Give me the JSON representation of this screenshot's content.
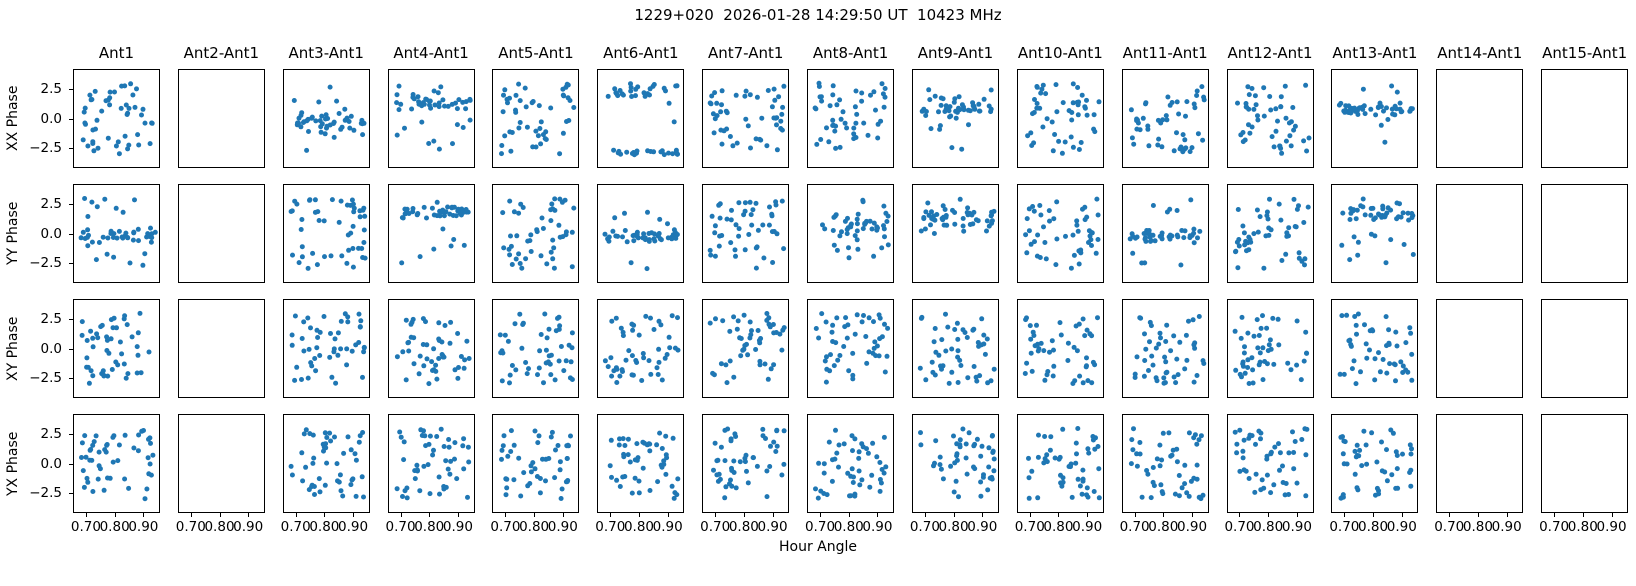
{
  "chart_data": {
    "type": "scatter",
    "title": "1229+020  2026-01-28 14:29:50 UT  10423 MHz",
    "xlabel": "Hour Angle",
    "row_labels": [
      "XX Phase",
      "YY Phase",
      "XY Phase",
      "YX Phase"
    ],
    "col_labels": [
      "Ant1",
      "Ant2-Ant1",
      "Ant3-Ant1",
      "Ant4-Ant1",
      "Ant5-Ant1",
      "Ant6-Ant1",
      "Ant7-Ant1",
      "Ant8-Ant1",
      "Ant9-Ant1",
      "Ant10-Ant1",
      "Ant11-Ant1",
      "Ant12-Ant1",
      "Ant13-Ant1",
      "Ant14-Ant1",
      "Ant15-Ant1"
    ],
    "empty_cols": [
      "Ant2-Ant1",
      "Ant14-Ant1",
      "Ant15-Ant1"
    ],
    "x_ticks": {
      "values": [
        0.7,
        0.8,
        0.9
      ],
      "labels": [
        "0.70",
        "0.80",
        "0.90"
      ]
    },
    "y_ticks": {
      "values": [
        2.5,
        0.0,
        -2.5
      ],
      "labels": [
        "2.5",
        "0.0",
        "−2.5"
      ]
    },
    "xlim": [
      0.655,
      0.958
    ],
    "ylim": [
      -4.2,
      4.2
    ],
    "x_data_range": [
      0.68,
      0.945
    ],
    "y_data_range": [
      -3.14,
      3.14
    ],
    "n_points": 50,
    "marker_color": "#1f77b4",
    "panels": [
      {
        "row": "XX Phase",
        "col": "Ant1",
        "pattern": "uniform",
        "seed": 101
      },
      {
        "row": "XX Phase",
        "col": "Ant3-Ant1",
        "pattern": "band",
        "center": -0.4,
        "spread": 1.7,
        "outlier": 0.3,
        "seed": 103
      },
      {
        "row": "XX Phase",
        "col": "Ant4-Ant1",
        "pattern": "band",
        "center": 1.4,
        "spread": 0.9,
        "outlier": 0.2,
        "seed": 104
      },
      {
        "row": "XX Phase",
        "col": "Ant5-Ant1",
        "pattern": "uniform",
        "seed": 105
      },
      {
        "row": "XX Phase",
        "col": "Ant6-Ant1",
        "pattern": "wrap",
        "seed": 106
      },
      {
        "row": "XX Phase",
        "col": "Ant7-Ant1",
        "pattern": "uniform",
        "seed": 107
      },
      {
        "row": "XX Phase",
        "col": "Ant8-Ant1",
        "pattern": "uniform",
        "seed": 108
      },
      {
        "row": "XX Phase",
        "col": "Ant9-Ant1",
        "pattern": "band",
        "center": 1.0,
        "spread": 1.6,
        "outlier": 0.25,
        "seed": 109
      },
      {
        "row": "XX Phase",
        "col": "Ant10-Ant1",
        "pattern": "uniform",
        "seed": 110
      },
      {
        "row": "XX Phase",
        "col": "Ant11-Ant1",
        "pattern": "uniform",
        "seed": 111
      },
      {
        "row": "XX Phase",
        "col": "Ant12-Ant1",
        "pattern": "uniform",
        "seed": 112
      },
      {
        "row": "XX Phase",
        "col": "Ant13-Ant1",
        "pattern": "band",
        "center": 0.8,
        "spread": 0.8,
        "outlier": 0.25,
        "seed": 113
      },
      {
        "row": "YY Phase",
        "col": "Ant1",
        "pattern": "band",
        "center": -0.2,
        "spread": 1.1,
        "outlier": 0.35,
        "seed": 201
      },
      {
        "row": "YY Phase",
        "col": "Ant3-Ant1",
        "pattern": "uniform",
        "seed": 203
      },
      {
        "row": "YY Phase",
        "col": "Ant4-Ant1",
        "pattern": "band",
        "center": 1.8,
        "spread": 0.8,
        "outlier": 0.2,
        "seed": 204
      },
      {
        "row": "YY Phase",
        "col": "Ant5-Ant1",
        "pattern": "uniform",
        "seed": 205
      },
      {
        "row": "YY Phase",
        "col": "Ant6-Ant1",
        "pattern": "band",
        "center": -0.3,
        "spread": 0.7,
        "outlier": 0.25,
        "seed": 206
      },
      {
        "row": "YY Phase",
        "col": "Ant7-Ant1",
        "pattern": "uniform",
        "seed": 207
      },
      {
        "row": "YY Phase",
        "col": "Ant8-Ant1",
        "pattern": "band",
        "center": 0.8,
        "spread": 1.7,
        "outlier": 0.3,
        "seed": 208
      },
      {
        "row": "YY Phase",
        "col": "Ant9-Ant1",
        "pattern": "band",
        "center": 1.2,
        "spread": 1.3,
        "outlier": 0.25,
        "seed": 209
      },
      {
        "row": "YY Phase",
        "col": "Ant10-Ant1",
        "pattern": "uniform",
        "seed": 210
      },
      {
        "row": "YY Phase",
        "col": "Ant11-Ant1",
        "pattern": "band",
        "center": -0.2,
        "spread": 0.9,
        "outlier": 0.35,
        "seed": 211
      },
      {
        "row": "YY Phase",
        "col": "Ant12-Ant1",
        "pattern": "uniform",
        "seed": 212
      },
      {
        "row": "YY Phase",
        "col": "Ant13-Ant1",
        "pattern": "band",
        "center": 1.7,
        "spread": 0.9,
        "outlier": 0.3,
        "seed": 213
      },
      {
        "row": "XY Phase",
        "col": "Ant1",
        "pattern": "uniform",
        "seed": 301
      },
      {
        "row": "XY Phase",
        "col": "Ant3-Ant1",
        "pattern": "uniform",
        "seed": 303
      },
      {
        "row": "XY Phase",
        "col": "Ant4-Ant1",
        "pattern": "uniform",
        "seed": 304
      },
      {
        "row": "XY Phase",
        "col": "Ant5-Ant1",
        "pattern": "uniform",
        "seed": 305
      },
      {
        "row": "XY Phase",
        "col": "Ant6-Ant1",
        "pattern": "uniform",
        "seed": 306
      },
      {
        "row": "XY Phase",
        "col": "Ant7-Ant1",
        "pattern": "uniform",
        "seed": 307
      },
      {
        "row": "XY Phase",
        "col": "Ant8-Ant1",
        "pattern": "uniform",
        "seed": 308
      },
      {
        "row": "XY Phase",
        "col": "Ant9-Ant1",
        "pattern": "uniform",
        "seed": 309
      },
      {
        "row": "XY Phase",
        "col": "Ant10-Ant1",
        "pattern": "uniform",
        "seed": 310
      },
      {
        "row": "XY Phase",
        "col": "Ant11-Ant1",
        "pattern": "uniform",
        "seed": 311
      },
      {
        "row": "XY Phase",
        "col": "Ant12-Ant1",
        "pattern": "uniform",
        "seed": 312
      },
      {
        "row": "XY Phase",
        "col": "Ant13-Ant1",
        "pattern": "uniform",
        "seed": 313
      },
      {
        "row": "YX Phase",
        "col": "Ant1",
        "pattern": "uniform",
        "seed": 401
      },
      {
        "row": "YX Phase",
        "col": "Ant3-Ant1",
        "pattern": "uniform",
        "seed": 403
      },
      {
        "row": "YX Phase",
        "col": "Ant4-Ant1",
        "pattern": "uniform",
        "seed": 404
      },
      {
        "row": "YX Phase",
        "col": "Ant5-Ant1",
        "pattern": "uniform",
        "seed": 405
      },
      {
        "row": "YX Phase",
        "col": "Ant6-Ant1",
        "pattern": "uniform",
        "seed": 406
      },
      {
        "row": "YX Phase",
        "col": "Ant7-Ant1",
        "pattern": "uniform",
        "seed": 407
      },
      {
        "row": "YX Phase",
        "col": "Ant8-Ant1",
        "pattern": "uniform",
        "seed": 408
      },
      {
        "row": "YX Phase",
        "col": "Ant9-Ant1",
        "pattern": "uniform",
        "seed": 409
      },
      {
        "row": "YX Phase",
        "col": "Ant10-Ant1",
        "pattern": "uniform",
        "seed": 410
      },
      {
        "row": "YX Phase",
        "col": "Ant11-Ant1",
        "pattern": "uniform",
        "seed": 411
      },
      {
        "row": "YX Phase",
        "col": "Ant12-Ant1",
        "pattern": "uniform",
        "seed": 412
      },
      {
        "row": "YX Phase",
        "col": "Ant13-Ant1",
        "pattern": "uniform",
        "seed": 413
      }
    ]
  }
}
